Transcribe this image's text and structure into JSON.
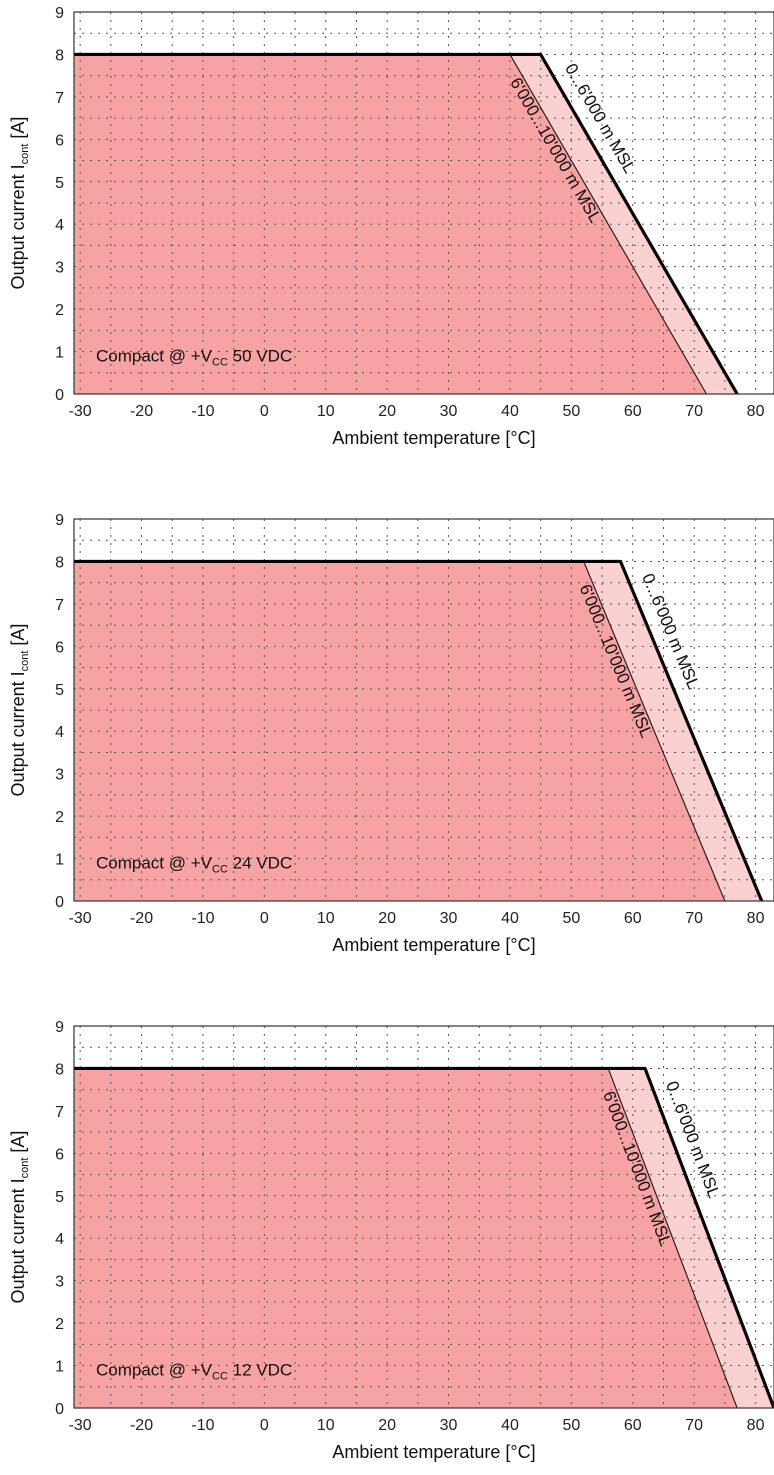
{
  "chart_data": [
    {
      "type": "area",
      "xlabel": "Ambient temperature [°C]",
      "ylabel": {
        "main": "Output current I",
        "sub": "cont",
        "unit": " [A]"
      },
      "xlim": [
        -31,
        83
      ],
      "ylim": [
        0,
        9
      ],
      "xticks": [
        -30,
        -20,
        -10,
        0,
        10,
        20,
        30,
        40,
        50,
        60,
        70,
        80
      ],
      "yticks": [
        0,
        1,
        2,
        3,
        4,
        5,
        6,
        7,
        8,
        9
      ],
      "grid": true,
      "label": {
        "prefix": "Compact @ +V",
        "sub": "CC",
        "suffix": " 50 VDC"
      },
      "series": [
        {
          "name": "0...6'000 m MSL",
          "x": [
            -31,
            45,
            77
          ],
          "y": [
            8,
            8,
            0
          ]
        },
        {
          "name": "6'000...10'000 m MSL",
          "x": [
            -31,
            40,
            72
          ],
          "y": [
            8,
            8,
            0
          ]
        }
      ]
    },
    {
      "type": "area",
      "xlabel": "Ambient temperature [°C]",
      "ylabel": {
        "main": "Output current I",
        "sub": "cont",
        "unit": " [A]"
      },
      "xlim": [
        -31,
        83
      ],
      "ylim": [
        0,
        9
      ],
      "xticks": [
        -30,
        -20,
        -10,
        0,
        10,
        20,
        30,
        40,
        50,
        60,
        70,
        80
      ],
      "yticks": [
        0,
        1,
        2,
        3,
        4,
        5,
        6,
        7,
        8,
        9
      ],
      "grid": true,
      "label": {
        "prefix": "Compact @ +V",
        "sub": "CC",
        "suffix": " 24 VDC"
      },
      "series": [
        {
          "name": "0...6'000 m MSL",
          "x": [
            -31,
            58,
            81
          ],
          "y": [
            8,
            8,
            0
          ]
        },
        {
          "name": "6'000...10'000 m MSL",
          "x": [
            -31,
            52,
            75
          ],
          "y": [
            8,
            8,
            0
          ]
        }
      ]
    },
    {
      "type": "area",
      "xlabel": "Ambient temperature [°C]",
      "ylabel": {
        "main": "Output current I",
        "sub": "cont",
        "unit": " [A]"
      },
      "xlim": [
        -31,
        83
      ],
      "ylim": [
        0,
        9
      ],
      "xticks": [
        -30,
        -20,
        -10,
        0,
        10,
        20,
        30,
        40,
        50,
        60,
        70,
        80
      ],
      "yticks": [
        0,
        1,
        2,
        3,
        4,
        5,
        6,
        7,
        8,
        9
      ],
      "grid": true,
      "label": {
        "prefix": "Compact @ +V",
        "sub": "CC",
        "suffix": " 12 VDC"
      },
      "series": [
        {
          "name": "0...6'000 m MSL",
          "x": [
            -31,
            62,
            83
          ],
          "y": [
            8,
            8,
            0
          ]
        },
        {
          "name": "6'000...10'000 m MSL",
          "x": [
            -31,
            56,
            77
          ],
          "y": [
            8,
            8,
            0
          ]
        }
      ]
    }
  ],
  "colors": {
    "fill_high_altitude": "#f7a3a3",
    "fill_low_altitude": "#fbd0d0",
    "line_low_altitude": "#000000",
    "line_high_altitude": "#222222",
    "grid": "#555555"
  }
}
